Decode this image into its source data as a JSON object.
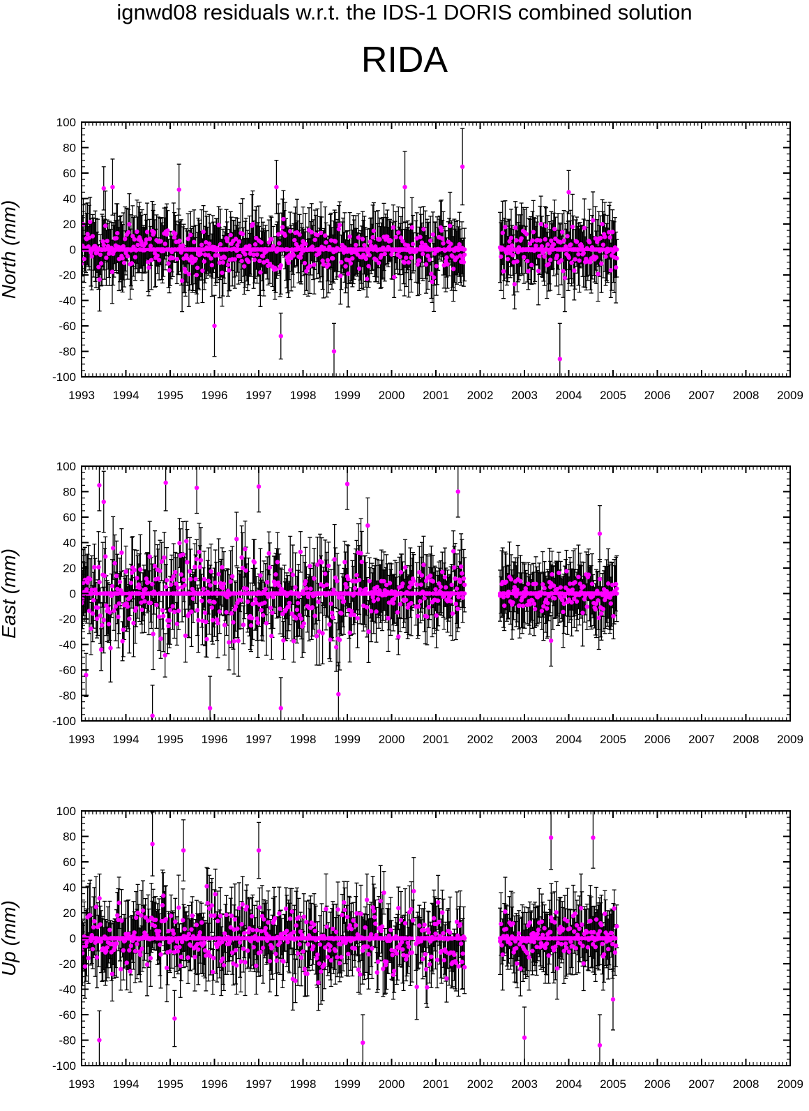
{
  "figure": {
    "title": "ignwd08 residuals w.r.t. the IDS-1 DORIS combined solution",
    "station": "RIDA"
  },
  "colors": {
    "points": "#ff00ff",
    "errorbars": "#000000",
    "axes": "#000000"
  },
  "chart_data": [
    {
      "type": "scatter",
      "name": "north",
      "ylabel": "North (mm)",
      "xlim": [
        1993,
        2009
      ],
      "ylim": [
        -100,
        100
      ],
      "x_ticks": [
        "1993",
        "1994",
        "1995",
        "1996",
        "1997",
        "1998",
        "1999",
        "2000",
        "2001",
        "2002",
        "2003",
        "2004",
        "2005",
        "2006",
        "2007",
        "2008",
        "2009"
      ],
      "y_ticks": [
        "100",
        "80",
        "60",
        "40",
        "20",
        "0",
        "-20",
        "-40",
        "-60",
        "-80",
        "-100"
      ],
      "grid": false,
      "data_segments": [
        [
          1993.0,
          2000.5
        ],
        [
          2000.55,
          2001.65
        ],
        [
          2002.45,
          2005.1
        ]
      ],
      "sample_points": [
        {
          "x": 1993.5,
          "y": 48,
          "err": 17
        },
        {
          "x": 1993.7,
          "y": 49,
          "err": 22
        },
        {
          "x": 1995.2,
          "y": 47,
          "err": 20
        },
        {
          "x": 1996.0,
          "y": -60,
          "err": 24
        },
        {
          "x": 1997.4,
          "y": 49,
          "err": 21
        },
        {
          "x": 1997.5,
          "y": -68,
          "err": 18
        },
        {
          "x": 1998.7,
          "y": -80,
          "err": 22
        },
        {
          "x": 2000.3,
          "y": 49,
          "err": 28
        },
        {
          "x": 2001.6,
          "y": 65,
          "err": 30
        },
        {
          "x": 2003.8,
          "y": -86,
          "err": 28
        },
        {
          "x": 2004.0,
          "y": 45,
          "err": 17
        }
      ]
    },
    {
      "type": "scatter",
      "name": "east",
      "ylabel": "East (mm)",
      "xlim": [
        1993,
        2009
      ],
      "ylim": [
        -100,
        100
      ],
      "x_ticks": [
        "1993",
        "1994",
        "1995",
        "1996",
        "1997",
        "1998",
        "1999",
        "2000",
        "2001",
        "2002",
        "2003",
        "2004",
        "2005",
        "2006",
        "2007",
        "2008",
        "2009"
      ],
      "y_ticks": [
        "100",
        "80",
        "60",
        "40",
        "20",
        "0",
        "-20",
        "-40",
        "-60",
        "-80",
        "-100"
      ],
      "grid": false,
      "data_segments": [
        [
          1993.0,
          2000.5
        ],
        [
          2000.55,
          2001.65
        ],
        [
          2002.45,
          2005.1
        ]
      ],
      "sample_points": [
        {
          "x": 1993.1,
          "y": -64,
          "err": 17
        },
        {
          "x": 1993.4,
          "y": 85,
          "err": 20
        },
        {
          "x": 1993.5,
          "y": 72,
          "err": 24
        },
        {
          "x": 1994.6,
          "y": -96,
          "err": 24
        },
        {
          "x": 1994.9,
          "y": 87,
          "err": 22
        },
        {
          "x": 1995.6,
          "y": 83,
          "err": 20
        },
        {
          "x": 1995.9,
          "y": -90,
          "err": 25
        },
        {
          "x": 1997.0,
          "y": 84,
          "err": 20
        },
        {
          "x": 1997.5,
          "y": -90,
          "err": 24
        },
        {
          "x": 1999.0,
          "y": 86,
          "err": 20
        },
        {
          "x": 1998.8,
          "y": -79,
          "err": 25
        },
        {
          "x": 2001.5,
          "y": 80,
          "err": 20
        },
        {
          "x": 2004.7,
          "y": 47,
          "err": 22
        },
        {
          "x": 2003.6,
          "y": -37,
          "err": 20
        }
      ]
    },
    {
      "type": "scatter",
      "name": "up",
      "ylabel": "Up (mm)",
      "xlim": [
        1993,
        2009
      ],
      "ylim": [
        -100,
        100
      ],
      "x_ticks": [
        "1993",
        "1994",
        "1995",
        "1996",
        "1997",
        "1998",
        "1999",
        "2000",
        "2001",
        "2002",
        "2003",
        "2004",
        "2005",
        "2006",
        "2007",
        "2008",
        "2009"
      ],
      "y_ticks": [
        "100",
        "80",
        "60",
        "40",
        "20",
        "0",
        "-20",
        "-40",
        "-60",
        "-80",
        "-100"
      ],
      "grid": false,
      "data_segments": [
        [
          1993.0,
          2000.5
        ],
        [
          2000.55,
          2001.65
        ],
        [
          2002.45,
          2005.1
        ]
      ],
      "sample_points": [
        {
          "x": 1993.4,
          "y": -80,
          "err": 23
        },
        {
          "x": 1994.6,
          "y": 74,
          "err": 25
        },
        {
          "x": 1995.1,
          "y": -63,
          "err": 22
        },
        {
          "x": 1995.3,
          "y": 69,
          "err": 24
        },
        {
          "x": 1997.0,
          "y": 69,
          "err": 22
        },
        {
          "x": 1999.35,
          "y": -82,
          "err": 22
        },
        {
          "x": 2003.0,
          "y": -78,
          "err": 24
        },
        {
          "x": 2003.6,
          "y": 79,
          "err": 25
        },
        {
          "x": 2004.55,
          "y": 79,
          "err": 24
        },
        {
          "x": 2004.7,
          "y": -84,
          "err": 24
        },
        {
          "x": 2005.0,
          "y": -48,
          "err": 24
        }
      ]
    }
  ]
}
